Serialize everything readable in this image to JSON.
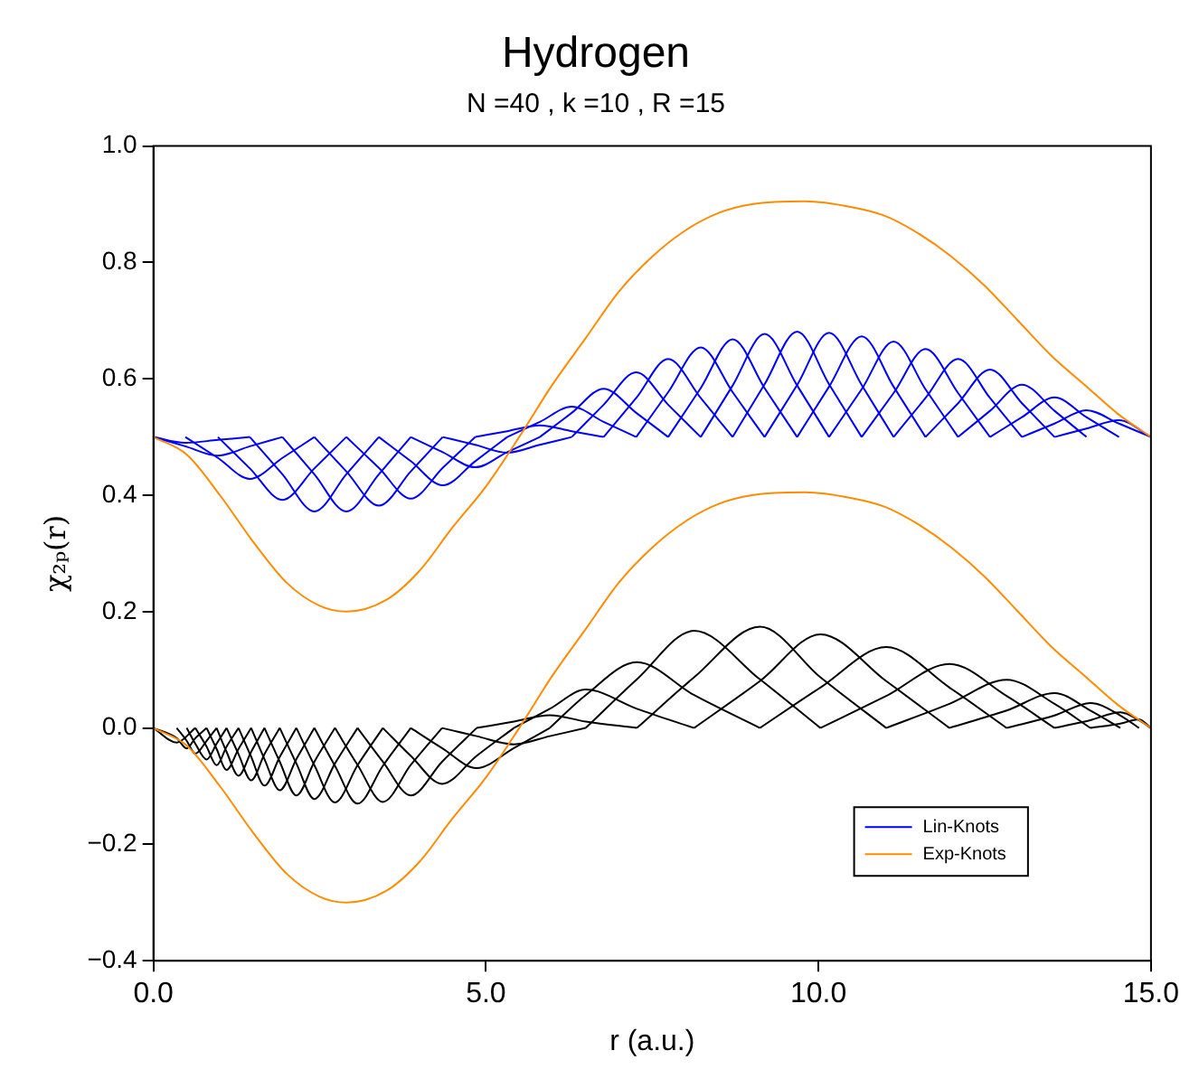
{
  "chart_data": {
    "type": "line",
    "title": "Hydrogen",
    "subtitle": "N =40 , k =10 , R =15",
    "xlabel": "r (a.u.)",
    "ylabel": "χ₂ₚ(r)",
    "xlim": [
      0,
      15
    ],
    "xticks": [
      {
        "value": 0,
        "label": "0.0"
      },
      {
        "value": 5,
        "label": "5.0"
      },
      {
        "value": 10,
        "label": "10.0"
      },
      {
        "value": 15,
        "label": "15.0"
      }
    ],
    "ylim": [
      -0.4,
      1.0
    ],
    "yticks": [
      {
        "value": -0.4,
        "label": "−0.4"
      },
      {
        "value": -0.2,
        "label": "−0.2"
      },
      {
        "value": 0,
        "label": "0.0"
      },
      {
        "value": 0.2,
        "label": "0.2"
      },
      {
        "value": 0.4,
        "label": "0.4"
      },
      {
        "value": 0.6,
        "label": "0.6"
      },
      {
        "value": 0.8,
        "label": "0.8"
      },
      {
        "value": 1.0,
        "label": "1.0"
      }
    ],
    "legend": "bottom right",
    "marker": "none",
    "line_style": "solid",
    "series": [
      {
        "name": "Lin-Knots",
        "color": "#0000ff",
        "x": [
          0,
          0.48,
          0.97,
          1.45
        ],
        "values": [
          0.5,
          0.49,
          0.495,
          0.5
        ]
      },
      {
        "color": "#0000ff",
        "x": [
          0,
          0.48,
          0.97,
          1.45,
          1.94
        ],
        "values": [
          0.5,
          0.484,
          0.468,
          0.484,
          0.5
        ]
      },
      {
        "color": "#0000ff",
        "x": [
          0.48,
          0.97,
          1.45,
          1.94,
          2.42
        ],
        "values": [
          0.5,
          0.464,
          0.428,
          0.464,
          0.5
        ]
      },
      {
        "color": "#0000ff",
        "x": [
          0.97,
          1.45,
          1.94,
          2.42,
          2.9
        ],
        "values": [
          0.5,
          0.446,
          0.392,
          0.446,
          0.5
        ]
      },
      {
        "color": "#0000ff",
        "x": [
          1.45,
          1.94,
          2.42,
          2.9,
          3.39
        ],
        "values": [
          0.5,
          0.436,
          0.372,
          0.436,
          0.5
        ]
      },
      {
        "color": "#0000ff",
        "x": [
          1.94,
          2.42,
          2.9,
          3.39,
          3.87
        ],
        "values": [
          0.5,
          0.436,
          0.372,
          0.436,
          0.5
        ]
      },
      {
        "color": "#0000ff",
        "x": [
          2.42,
          2.9,
          3.39,
          3.87,
          4.35
        ],
        "values": [
          0.5,
          0.441,
          0.382,
          0.441,
          0.5
        ]
      },
      {
        "color": "#0000ff",
        "x": [
          2.9,
          3.39,
          3.87,
          4.35,
          4.84
        ],
        "values": [
          0.5,
          0.447,
          0.394,
          0.447,
          0.5
        ]
      },
      {
        "color": "#0000ff",
        "x": [
          3.39,
          3.87,
          4.35,
          4.84,
          5.32
        ],
        "values": [
          0.5,
          0.4585,
          0.417,
          0.4585,
          0.5
        ]
      },
      {
        "color": "#0000ff",
        "x": [
          3.87,
          4.35,
          4.84,
          5.32,
          5.81
        ],
        "values": [
          0.5,
          0.474,
          0.448,
          0.474,
          0.5
        ]
      },
      {
        "color": "#0000ff",
        "x": [
          4.35,
          4.84,
          5.32,
          5.81,
          6.29
        ],
        "values": [
          0.5,
          0.4865,
          0.473,
          0.4865,
          0.5
        ]
      },
      {
        "color": "#0000ff",
        "x": [
          4.84,
          5.32,
          5.81,
          6.29,
          6.77
        ],
        "values": [
          0.5,
          0.51,
          0.52,
          0.51,
          0.5
        ]
      },
      {
        "color": "#0000ff",
        "x": [
          5.32,
          5.81,
          6.29,
          6.77,
          7.26
        ],
        "values": [
          0.5,
          0.526,
          0.552,
          0.526,
          0.5
        ]
      },
      {
        "color": "#0000ff",
        "x": [
          5.81,
          6.29,
          6.77,
          7.26,
          7.74
        ],
        "values": [
          0.5,
          0.5415,
          0.583,
          0.5415,
          0.5
        ]
      },
      {
        "color": "#0000ff",
        "x": [
          6.29,
          6.77,
          7.26,
          7.74,
          8.23
        ],
        "values": [
          0.5,
          0.5555,
          0.611,
          0.5555,
          0.5
        ]
      },
      {
        "color": "#0000ff",
        "x": [
          6.77,
          7.26,
          7.74,
          8.23,
          8.71
        ],
        "values": [
          0.5,
          0.567,
          0.634,
          0.567,
          0.5
        ]
      },
      {
        "color": "#0000ff",
        "x": [
          7.26,
          7.74,
          8.23,
          8.71,
          9.19
        ],
        "values": [
          0.5,
          0.577,
          0.654,
          0.577,
          0.5
        ]
      },
      {
        "color": "#0000ff",
        "x": [
          7.74,
          8.23,
          8.71,
          9.19,
          9.68
        ],
        "values": [
          0.5,
          0.584,
          0.668,
          0.584,
          0.5
        ]
      },
      {
        "color": "#0000ff",
        "x": [
          8.23,
          8.71,
          9.19,
          9.68,
          10.16
        ],
        "values": [
          0.5,
          0.5885,
          0.677,
          0.5885,
          0.5
        ]
      },
      {
        "color": "#0000ff",
        "x": [
          8.71,
          9.19,
          9.68,
          10.16,
          10.65
        ],
        "values": [
          0.5,
          0.5905,
          0.681,
          0.5905,
          0.5
        ]
      },
      {
        "color": "#0000ff",
        "x": [
          9.19,
          9.68,
          10.16,
          10.65,
          11.13
        ],
        "values": [
          0.5,
          0.5895,
          0.679,
          0.5895,
          0.5
        ]
      },
      {
        "color": "#0000ff",
        "x": [
          9.68,
          10.16,
          10.65,
          11.13,
          11.61
        ],
        "values": [
          0.5,
          0.5865,
          0.673,
          0.5865,
          0.5
        ]
      },
      {
        "color": "#0000ff",
        "x": [
          10.16,
          10.65,
          11.13,
          11.61,
          12.1
        ],
        "values": [
          0.5,
          0.582,
          0.664,
          0.582,
          0.5
        ]
      },
      {
        "color": "#0000ff",
        "x": [
          10.65,
          11.13,
          11.61,
          12.1,
          12.58
        ],
        "values": [
          0.5,
          0.5755,
          0.651,
          0.5755,
          0.5
        ]
      },
      {
        "color": "#0000ff",
        "x": [
          11.13,
          11.61,
          12.1,
          12.58,
          13.06
        ],
        "values": [
          0.5,
          0.567,
          0.634,
          0.567,
          0.5
        ]
      },
      {
        "color": "#0000ff",
        "x": [
          11.61,
          12.1,
          12.58,
          13.06,
          13.55
        ],
        "values": [
          0.5,
          0.558,
          0.616,
          0.558,
          0.5
        ]
      },
      {
        "color": "#0000ff",
        "x": [
          12.1,
          12.58,
          13.06,
          13.55,
          14.03
        ],
        "values": [
          0.5,
          0.545,
          0.59,
          0.545,
          0.5
        ]
      },
      {
        "color": "#0000ff",
        "x": [
          12.58,
          13.06,
          13.55,
          14.03,
          14.52
        ],
        "values": [
          0.5,
          0.534,
          0.568,
          0.534,
          0.5
        ]
      },
      {
        "color": "#0000ff",
        "x": [
          13.06,
          13.55,
          14.03,
          14.52,
          15
        ],
        "values": [
          0.5,
          0.523,
          0.546,
          0.523,
          0.5
        ]
      },
      {
        "color": "#0000ff",
        "x": [
          13.55,
          14.03,
          14.52,
          15
        ],
        "values": [
          0.5,
          0.5145,
          0.529,
          0.5
        ]
      },
      {
        "color": "#000000",
        "x": [
          0,
          0.35,
          0.63
        ],
        "values": [
          0,
          -0.025,
          0
        ]
      },
      {
        "color": "#000000",
        "x": [
          0,
          0.35,
          0.5,
          0.63,
          0.8
        ],
        "values": [
          0,
          -0.0175,
          -0.035,
          -0.0175,
          0
        ]
      },
      {
        "color": "#000000",
        "x": [
          0.35,
          0.5,
          0.63,
          0.8,
          0.95
        ],
        "values": [
          0,
          -0.022,
          -0.044,
          -0.022,
          0
        ]
      },
      {
        "color": "#000000",
        "x": [
          0.5,
          0.63,
          0.8,
          0.95,
          1.1
        ],
        "values": [
          0,
          -0.027,
          -0.054,
          -0.027,
          0
        ]
      },
      {
        "color": "#000000",
        "x": [
          0.63,
          0.8,
          0.95,
          1.1,
          1.28
        ],
        "values": [
          0,
          -0.032,
          -0.064,
          -0.032,
          0
        ]
      },
      {
        "color": "#000000",
        "x": [
          0.8,
          0.95,
          1.1,
          1.28,
          1.47
        ],
        "values": [
          0,
          -0.036,
          -0.072,
          -0.036,
          0
        ]
      },
      {
        "color": "#000000",
        "x": [
          0.95,
          1.1,
          1.28,
          1.47,
          1.67
        ],
        "values": [
          0,
          -0.041,
          -0.082,
          -0.041,
          0
        ]
      },
      {
        "color": "#000000",
        "x": [
          1.1,
          1.28,
          1.47,
          1.67,
          1.9
        ],
        "values": [
          0,
          -0.045,
          -0.09,
          -0.045,
          0
        ]
      },
      {
        "color": "#000000",
        "x": [
          1.28,
          1.47,
          1.67,
          1.9,
          2.15
        ],
        "values": [
          0,
          -0.0495,
          -0.099,
          -0.0495,
          0
        ]
      },
      {
        "color": "#000000",
        "x": [
          1.47,
          1.67,
          1.9,
          2.15,
          2.42
        ],
        "values": [
          0,
          -0.0535,
          -0.107,
          -0.0535,
          0
        ]
      },
      {
        "color": "#000000",
        "x": [
          1.67,
          1.9,
          2.15,
          2.42,
          2.73
        ],
        "values": [
          0,
          -0.058,
          -0.116,
          -0.058,
          0
        ]
      },
      {
        "color": "#000000",
        "x": [
          1.9,
          2.15,
          2.42,
          2.73,
          3.07
        ],
        "values": [
          0,
          -0.061,
          -0.122,
          -0.061,
          0
        ]
      },
      {
        "color": "#000000",
        "x": [
          2.15,
          2.42,
          2.73,
          3.07,
          3.45
        ],
        "values": [
          0,
          -0.064,
          -0.128,
          -0.064,
          0
        ]
      },
      {
        "color": "#000000",
        "x": [
          2.42,
          2.73,
          3.07,
          3.45,
          3.87
        ],
        "values": [
          0,
          -0.065,
          -0.13,
          -0.065,
          0
        ]
      },
      {
        "color": "#000000",
        "x": [
          2.73,
          3.07,
          3.45,
          3.87,
          4.34
        ],
        "values": [
          0,
          -0.0635,
          -0.127,
          -0.0635,
          0
        ]
      },
      {
        "color": "#000000",
        "x": [
          3.07,
          3.45,
          3.87,
          4.34,
          4.86
        ],
        "values": [
          0,
          -0.058,
          -0.116,
          -0.058,
          0
        ]
      },
      {
        "color": "#000000",
        "x": [
          3.45,
          3.87,
          4.34,
          4.86,
          5.42
        ],
        "values": [
          0,
          -0.048,
          -0.096,
          -0.048,
          0
        ]
      },
      {
        "color": "#000000",
        "x": [
          3.87,
          4.34,
          4.86,
          5.42,
          5.96
        ],
        "values": [
          0,
          -0.0345,
          -0.069,
          -0.0345,
          0
        ]
      },
      {
        "color": "#000000",
        "x": [
          4.34,
          4.86,
          5.42,
          5.96,
          6.5
        ],
        "values": [
          0,
          -0.014,
          -0.028,
          -0.014,
          0
        ]
      },
      {
        "color": "#000000",
        "x": [
          4.86,
          5.42,
          5.96,
          6.5,
          7.27
        ],
        "values": [
          0,
          0.011,
          0.022,
          0.011,
          0
        ]
      },
      {
        "color": "#000000",
        "x": [
          5.42,
          5.96,
          6.5,
          7.27,
          8.13
        ],
        "values": [
          0,
          0.033,
          0.066,
          0.033,
          0
        ]
      },
      {
        "color": "#000000",
        "x": [
          5.96,
          6.5,
          7.27,
          8.13,
          9.12
        ],
        "values": [
          0,
          0.0565,
          0.113,
          0.0565,
          0
        ]
      },
      {
        "color": "#000000",
        "x": [
          6.5,
          7.27,
          8.13,
          9.12,
          10.03
        ],
        "values": [
          0,
          0.0835,
          0.167,
          0.0835,
          0
        ]
      },
      {
        "color": "#000000",
        "x": [
          7.27,
          8.13,
          9.12,
          10.03,
          11.02
        ],
        "values": [
          0,
          0.087,
          0.174,
          0.087,
          0
        ]
      },
      {
        "color": "#000000",
        "x": [
          8.13,
          9.12,
          10.03,
          11.02,
          11.97
        ],
        "values": [
          0,
          0.0805,
          0.161,
          0.0805,
          0
        ]
      },
      {
        "color": "#000000",
        "x": [
          9.12,
          10.03,
          11.02,
          11.97,
          12.83
        ],
        "values": [
          0,
          0.0695,
          0.139,
          0.0695,
          0
        ]
      },
      {
        "color": "#000000",
        "x": [
          10.03,
          11.02,
          11.97,
          12.83,
          13.55
        ],
        "values": [
          0,
          0.055,
          0.11,
          0.055,
          0
        ]
      },
      {
        "color": "#000000",
        "x": [
          11.02,
          11.97,
          12.83,
          13.55,
          14.09
        ],
        "values": [
          0,
          0.0415,
          0.083,
          0.0415,
          0
        ]
      },
      {
        "color": "#000000",
        "x": [
          11.97,
          12.83,
          13.55,
          14.09,
          14.54
        ],
        "values": [
          0,
          0.03,
          0.06,
          0.03,
          0
        ]
      },
      {
        "color": "#000000",
        "x": [
          12.83,
          13.55,
          14.09,
          14.54,
          14.82
        ],
        "values": [
          0,
          0.0215,
          0.043,
          0.0215,
          0
        ]
      },
      {
        "color": "#000000",
        "x": [
          13.55,
          14.09,
          14.54,
          14.82,
          15
        ],
        "values": [
          0,
          0.0135,
          0.027,
          0.0135,
          0
        ]
      },
      {
        "color": "#000000",
        "x": [
          14.09,
          14.54,
          14.82,
          15
        ],
        "values": [
          0,
          0.0075,
          0.015,
          0
        ]
      },
      {
        "name": "Exp-Knots",
        "color": "#ff8c00",
        "x": [
          0,
          0.5,
          1,
          1.5,
          2,
          2.5,
          2.9,
          3.5,
          4,
          4.5,
          5,
          5.5,
          6,
          6.5,
          7,
          7.5,
          8,
          8.5,
          9,
          9.8,
          10.5,
          11,
          11.5,
          12,
          12.5,
          13,
          13.5,
          14,
          14.5,
          15
        ],
        "values": [
          0.5,
          0.47,
          0.4,
          0.32,
          0.25,
          0.21,
          0.2,
          0.22,
          0.27,
          0.345,
          0.415,
          0.5,
          0.59,
          0.67,
          0.75,
          0.81,
          0.855,
          0.885,
          0.9,
          0.905,
          0.895,
          0.88,
          0.85,
          0.81,
          0.76,
          0.7,
          0.64,
          0.59,
          0.54,
          0.5
        ]
      },
      {
        "color": "#ff8c00",
        "x": [
          0,
          0.5,
          1,
          1.5,
          2,
          2.5,
          2.9,
          3.5,
          4,
          4.5,
          5,
          5.5,
          6,
          6.5,
          7,
          7.5,
          8,
          8.5,
          9,
          9.8,
          10.5,
          11,
          11.5,
          12,
          12.5,
          13,
          13.5,
          14,
          14.5,
          15
        ],
        "values": [
          0,
          -0.03,
          -0.1,
          -0.18,
          -0.25,
          -0.29,
          -0.3,
          -0.28,
          -0.23,
          -0.155,
          -0.085,
          0,
          0.09,
          0.17,
          0.25,
          0.31,
          0.355,
          0.385,
          0.4,
          0.405,
          0.395,
          0.38,
          0.35,
          0.31,
          0.26,
          0.2,
          0.14,
          0.09,
          0.04,
          0
        ]
      }
    ]
  }
}
